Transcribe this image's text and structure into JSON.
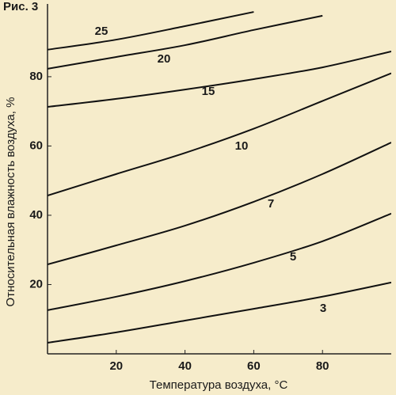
{
  "chart_data": {
    "type": "line",
    "title": "Рис. 3",
    "xlabel": "Температура воздуха, °C",
    "ylabel": "Относительная влажность воздуха, %",
    "x": [
      0,
      20,
      40,
      60,
      80,
      100
    ],
    "series": [
      {
        "name": "3",
        "color": "#111111",
        "values": [
          3.2,
          6.2,
          9.6,
          13,
          16.5,
          20.6
        ]
      },
      {
        "name": "5",
        "color": "#111111",
        "values": [
          12.6,
          16.5,
          21,
          26.3,
          32.5,
          40.5
        ]
      },
      {
        "name": "7",
        "color": "#111111",
        "values": [
          25.8,
          31.3,
          37,
          43.9,
          51.9,
          61
        ]
      },
      {
        "name": "10",
        "color": "#111111",
        "values": [
          45.7,
          51.9,
          58,
          65,
          73,
          81
        ]
      },
      {
        "name": "15",
        "color": "#111111",
        "values": [
          71.3,
          73.6,
          76.3,
          79.3,
          82.7,
          87.3
        ]
      },
      {
        "name": "20",
        "color": "#111111",
        "values": [
          82.3,
          85.7,
          89.1,
          93.5,
          97.6,
          null
        ]
      },
      {
        "name": "25",
        "color": "#111111",
        "values": [
          87.8,
          90.7,
          94.6,
          98.7,
          null,
          null
        ]
      }
    ],
    "xlim": [
      0,
      100
    ],
    "ylim": [
      0,
      101
    ],
    "xticks": [
      20,
      40,
      60,
      80
    ],
    "yticks": [
      20,
      40,
      60,
      80
    ]
  }
}
